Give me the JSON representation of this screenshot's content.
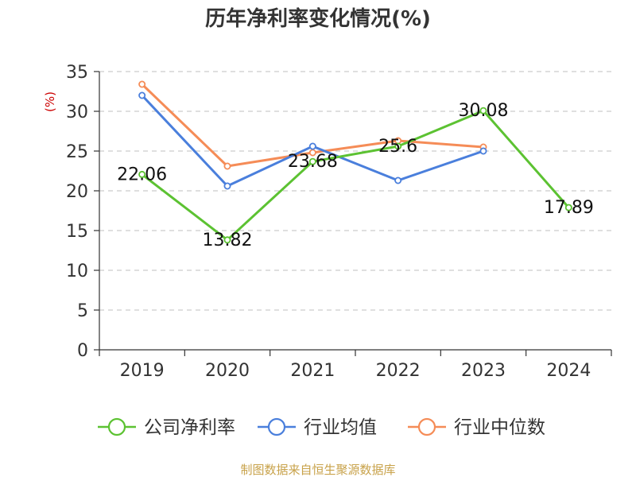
{
  "chart_data": {
    "type": "line",
    "title": "历年净利率变化情况(%)",
    "ylabel": "(%)",
    "xlabel": "",
    "categories": [
      "2019",
      "2020",
      "2021",
      "2022",
      "2023",
      "2024"
    ],
    "ylim": [
      0,
      35
    ],
    "yticks": [
      0,
      5,
      10,
      15,
      20,
      25,
      30,
      35
    ],
    "grid": true,
    "legend_position": "bottom",
    "series": [
      {
        "name": "公司净利率",
        "color": "#5cc232",
        "values": [
          22.06,
          13.82,
          23.68,
          25.6,
          30.08,
          17.89
        ],
        "labels": [
          "22.06",
          "13.82",
          "23.68",
          "25.6",
          "30.08",
          "17.89"
        ]
      },
      {
        "name": "行业均值",
        "color": "#4a7fdc",
        "values": [
          32.0,
          20.6,
          25.6,
          21.3,
          25.0,
          null
        ]
      },
      {
        "name": "行业中位数",
        "color": "#f58c57",
        "values": [
          33.4,
          23.1,
          24.8,
          26.3,
          25.5,
          null
        ]
      }
    ],
    "source": "制图数据来自恒生聚源数据库"
  }
}
